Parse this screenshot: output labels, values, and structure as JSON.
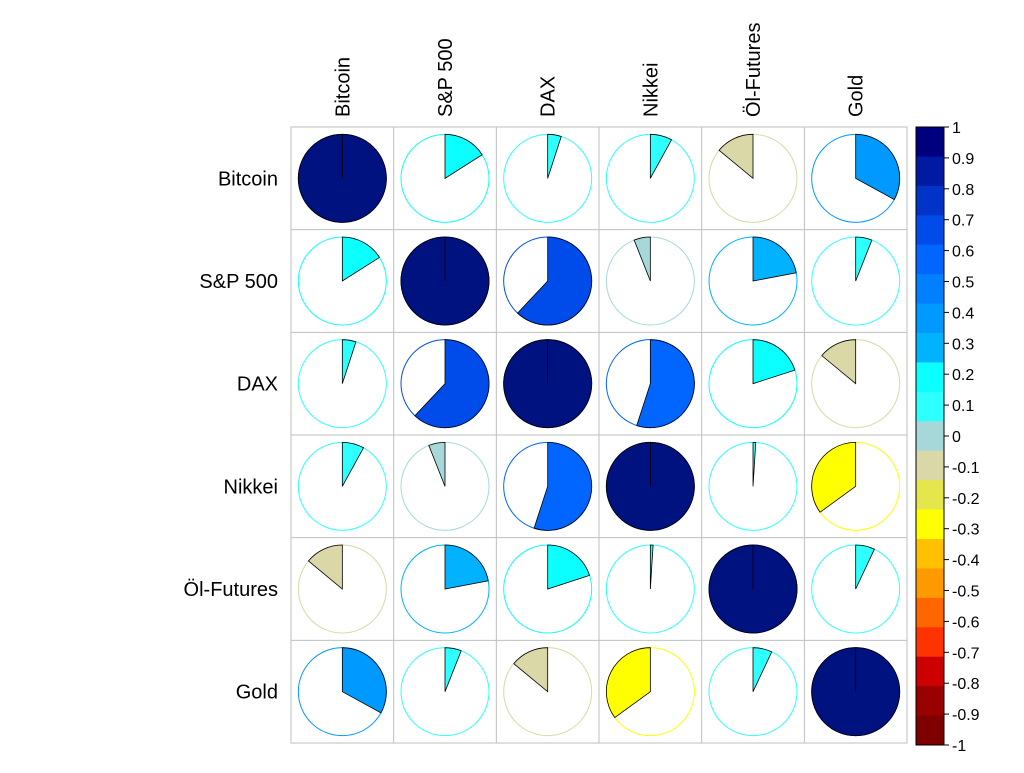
{
  "chart_data": {
    "type": "heatmap",
    "variables": [
      "Bitcoin",
      "S&P 500",
      "DAX",
      "Nikkei",
      "Öl-Futures",
      "Gold"
    ],
    "matrix": [
      [
        1.0,
        0.16,
        0.05,
        0.08,
        -0.14,
        0.33
      ],
      [
        0.16,
        1.0,
        0.62,
        -0.06,
        0.22,
        0.06
      ],
      [
        0.05,
        0.62,
        1.0,
        0.55,
        0.2,
        -0.14
      ],
      [
        0.08,
        -0.06,
        0.55,
        1.0,
        0.01,
        -0.35
      ],
      [
        -0.14,
        0.22,
        0.2,
        0.01,
        1.0,
        0.07
      ],
      [
        0.33,
        0.06,
        -0.14,
        -0.35,
        0.07,
        1.0
      ]
    ],
    "colorbar": {
      "ticks": [
        "1",
        "0.9",
        "0.8",
        "0.7",
        "0.6",
        "0.5",
        "0.4",
        "0.3",
        "0.2",
        "0.1",
        "0",
        "-0.1",
        "-0.2",
        "-0.3",
        "-0.4",
        "-0.5",
        "-0.6",
        "-0.7",
        "-0.8",
        "-0.9",
        "-1"
      ],
      "colors_top_to_bottom": [
        "#00007F",
        "#001AA2",
        "#0033C6",
        "#004CEA",
        "#0066FF",
        "#007FFF",
        "#0099FF",
        "#00B2FF",
        "#0BFFFF",
        "#2EFFFF",
        "#A6D8DA",
        "#D9D8A6",
        "#E5E54C",
        "#FFFF00",
        "#FFC000",
        "#FF9900",
        "#FF6600",
        "#FF3300",
        "#CC0000",
        "#990000",
        "#7F0000"
      ]
    },
    "diagonal_color": "#00127F",
    "ylim": [
      -1,
      1
    ]
  }
}
